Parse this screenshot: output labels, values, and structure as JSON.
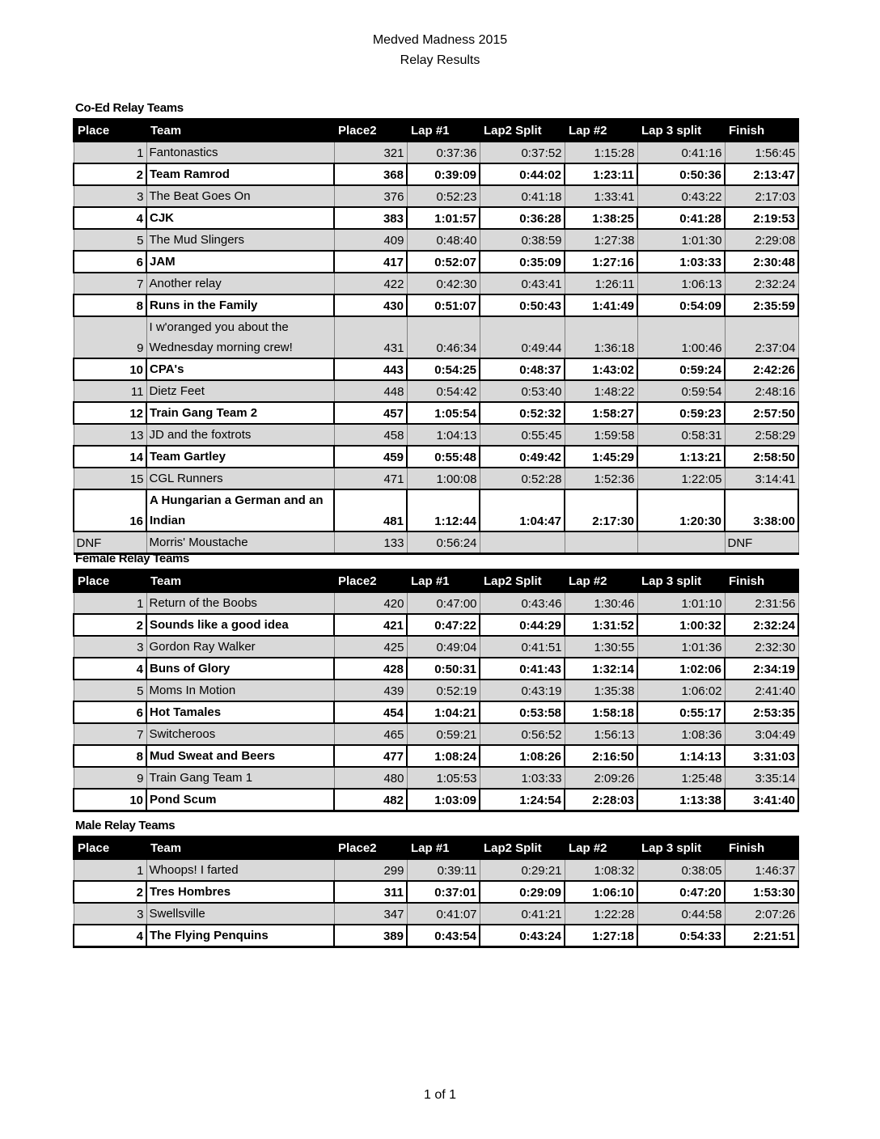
{
  "header": {
    "title": "Medved Madness 2015",
    "subtitle": "Relay Results"
  },
  "columns": [
    "Place",
    "Team",
    "Place2",
    "Lap #1",
    "Lap2 Split",
    "Lap #2",
    "Lap 3 split",
    "Finish"
  ],
  "sections": [
    {
      "title": "Co-Ed Relay Teams",
      "rows": [
        [
          "1",
          "Fantonastics",
          "321",
          "0:37:36",
          "0:37:52",
          "1:15:28",
          "0:41:16",
          "1:56:45"
        ],
        [
          "2",
          "Team Ramrod",
          "368",
          "0:39:09",
          "0:44:02",
          "1:23:11",
          "0:50:36",
          "2:13:47"
        ],
        [
          "3",
          "The Beat Goes On",
          "376",
          "0:52:23",
          "0:41:18",
          "1:33:41",
          "0:43:22",
          "2:17:03"
        ],
        [
          "4",
          "CJK",
          "383",
          "1:01:57",
          "0:36:28",
          "1:38:25",
          "0:41:28",
          "2:19:53"
        ],
        [
          "5",
          "The Mud Slingers",
          "409",
          "0:48:40",
          "0:38:59",
          "1:27:38",
          "1:01:30",
          "2:29:08"
        ],
        [
          "6",
          "JAM",
          "417",
          "0:52:07",
          "0:35:09",
          "1:27:16",
          "1:03:33",
          "2:30:48"
        ],
        [
          "7",
          "Another relay",
          "422",
          "0:42:30",
          "0:43:41",
          "1:26:11",
          "1:06:13",
          "2:32:24"
        ],
        [
          "8",
          "Runs in the Family",
          "430",
          "0:51:07",
          "0:50:43",
          "1:41:49",
          "0:54:09",
          "2:35:59"
        ],
        [
          "9",
          "I w'oranged you about the Wednesday morning crew!",
          "431",
          "0:46:34",
          "0:49:44",
          "1:36:18",
          "1:00:46",
          "2:37:04"
        ],
        [
          "10",
          "CPA's",
          "443",
          "0:54:25",
          "0:48:37",
          "1:43:02",
          "0:59:24",
          "2:42:26"
        ],
        [
          "11",
          "Dietz Feet",
          "448",
          "0:54:42",
          "0:53:40",
          "1:48:22",
          "0:59:54",
          "2:48:16"
        ],
        [
          "12",
          "Train Gang Team 2",
          "457",
          "1:05:54",
          "0:52:32",
          "1:58:27",
          "0:59:23",
          "2:57:50"
        ],
        [
          "13",
          "JD and the foxtrots",
          "458",
          "1:04:13",
          "0:55:45",
          "1:59:58",
          "0:58:31",
          "2:58:29"
        ],
        [
          "14",
          "Team Gartley",
          "459",
          "0:55:48",
          "0:49:42",
          "1:45:29",
          "1:13:21",
          "2:58:50"
        ],
        [
          "15",
          "CGL Runners",
          "471",
          "1:00:08",
          "0:52:28",
          "1:52:36",
          "1:22:05",
          "3:14:41"
        ],
        [
          "16",
          "A Hungarian  a German and an Indian",
          "481",
          "1:12:44",
          "1:04:47",
          "2:17:30",
          "1:20:30",
          "3:38:00"
        ],
        [
          "DNF",
          "Morris' Moustache",
          "133",
          "0:56:24",
          "",
          "",
          "",
          "DNF"
        ]
      ]
    },
    {
      "title": "Female Relay Teams",
      "rows": [
        [
          "1",
          "Return of the Boobs",
          "420",
          "0:47:00",
          "0:43:46",
          "1:30:46",
          "1:01:10",
          "2:31:56"
        ],
        [
          "2",
          "Sounds like a good idea",
          "421",
          "0:47:22",
          "0:44:29",
          "1:31:52",
          "1:00:32",
          "2:32:24"
        ],
        [
          "3",
          "Gordon Ray Walker",
          "425",
          "0:49:04",
          "0:41:51",
          "1:30:55",
          "1:01:36",
          "2:32:30"
        ],
        [
          "4",
          "Buns of Glory",
          "428",
          "0:50:31",
          "0:41:43",
          "1:32:14",
          "1:02:06",
          "2:34:19"
        ],
        [
          "5",
          "Moms In Motion",
          "439",
          "0:52:19",
          "0:43:19",
          "1:35:38",
          "1:06:02",
          "2:41:40"
        ],
        [
          "6",
          "Hot Tamales",
          "454",
          "1:04:21",
          "0:53:58",
          "1:58:18",
          "0:55:17",
          "2:53:35"
        ],
        [
          "7",
          "Switcheroos",
          "465",
          "0:59:21",
          "0:56:52",
          "1:56:13",
          "1:08:36",
          "3:04:49"
        ],
        [
          "8",
          "Mud Sweat and Beers",
          "477",
          "1:08:24",
          "1:08:26",
          "2:16:50",
          "1:14:13",
          "3:31:03"
        ],
        [
          "9",
          "Train Gang Team 1",
          "480",
          "1:05:53",
          "1:03:33",
          "2:09:26",
          "1:25:48",
          "3:35:14"
        ],
        [
          "10",
          "Pond Scum",
          "482",
          "1:03:09",
          "1:24:54",
          "2:28:03",
          "1:13:38",
          "3:41:40"
        ]
      ]
    },
    {
      "title": "Male Relay Teams",
      "rows": [
        [
          "1",
          "Whoops! I farted",
          "299",
          "0:39:11",
          "0:29:21",
          "1:08:32",
          "0:38:05",
          "1:46:37"
        ],
        [
          "2",
          "Tres Hombres",
          "311",
          "0:37:01",
          "0:29:09",
          "1:06:10",
          "0:47:20",
          "1:53:30"
        ],
        [
          "3",
          "Swellsville",
          "347",
          "0:41:07",
          "0:41:21",
          "1:22:28",
          "0:44:58",
          "2:07:26"
        ],
        [
          "4",
          "The Flying Penquins",
          "389",
          "0:43:54",
          "0:43:24",
          "1:27:18",
          "0:54:33",
          "2:21:51"
        ]
      ]
    }
  ],
  "footer": {
    "page": "1 of 1"
  }
}
